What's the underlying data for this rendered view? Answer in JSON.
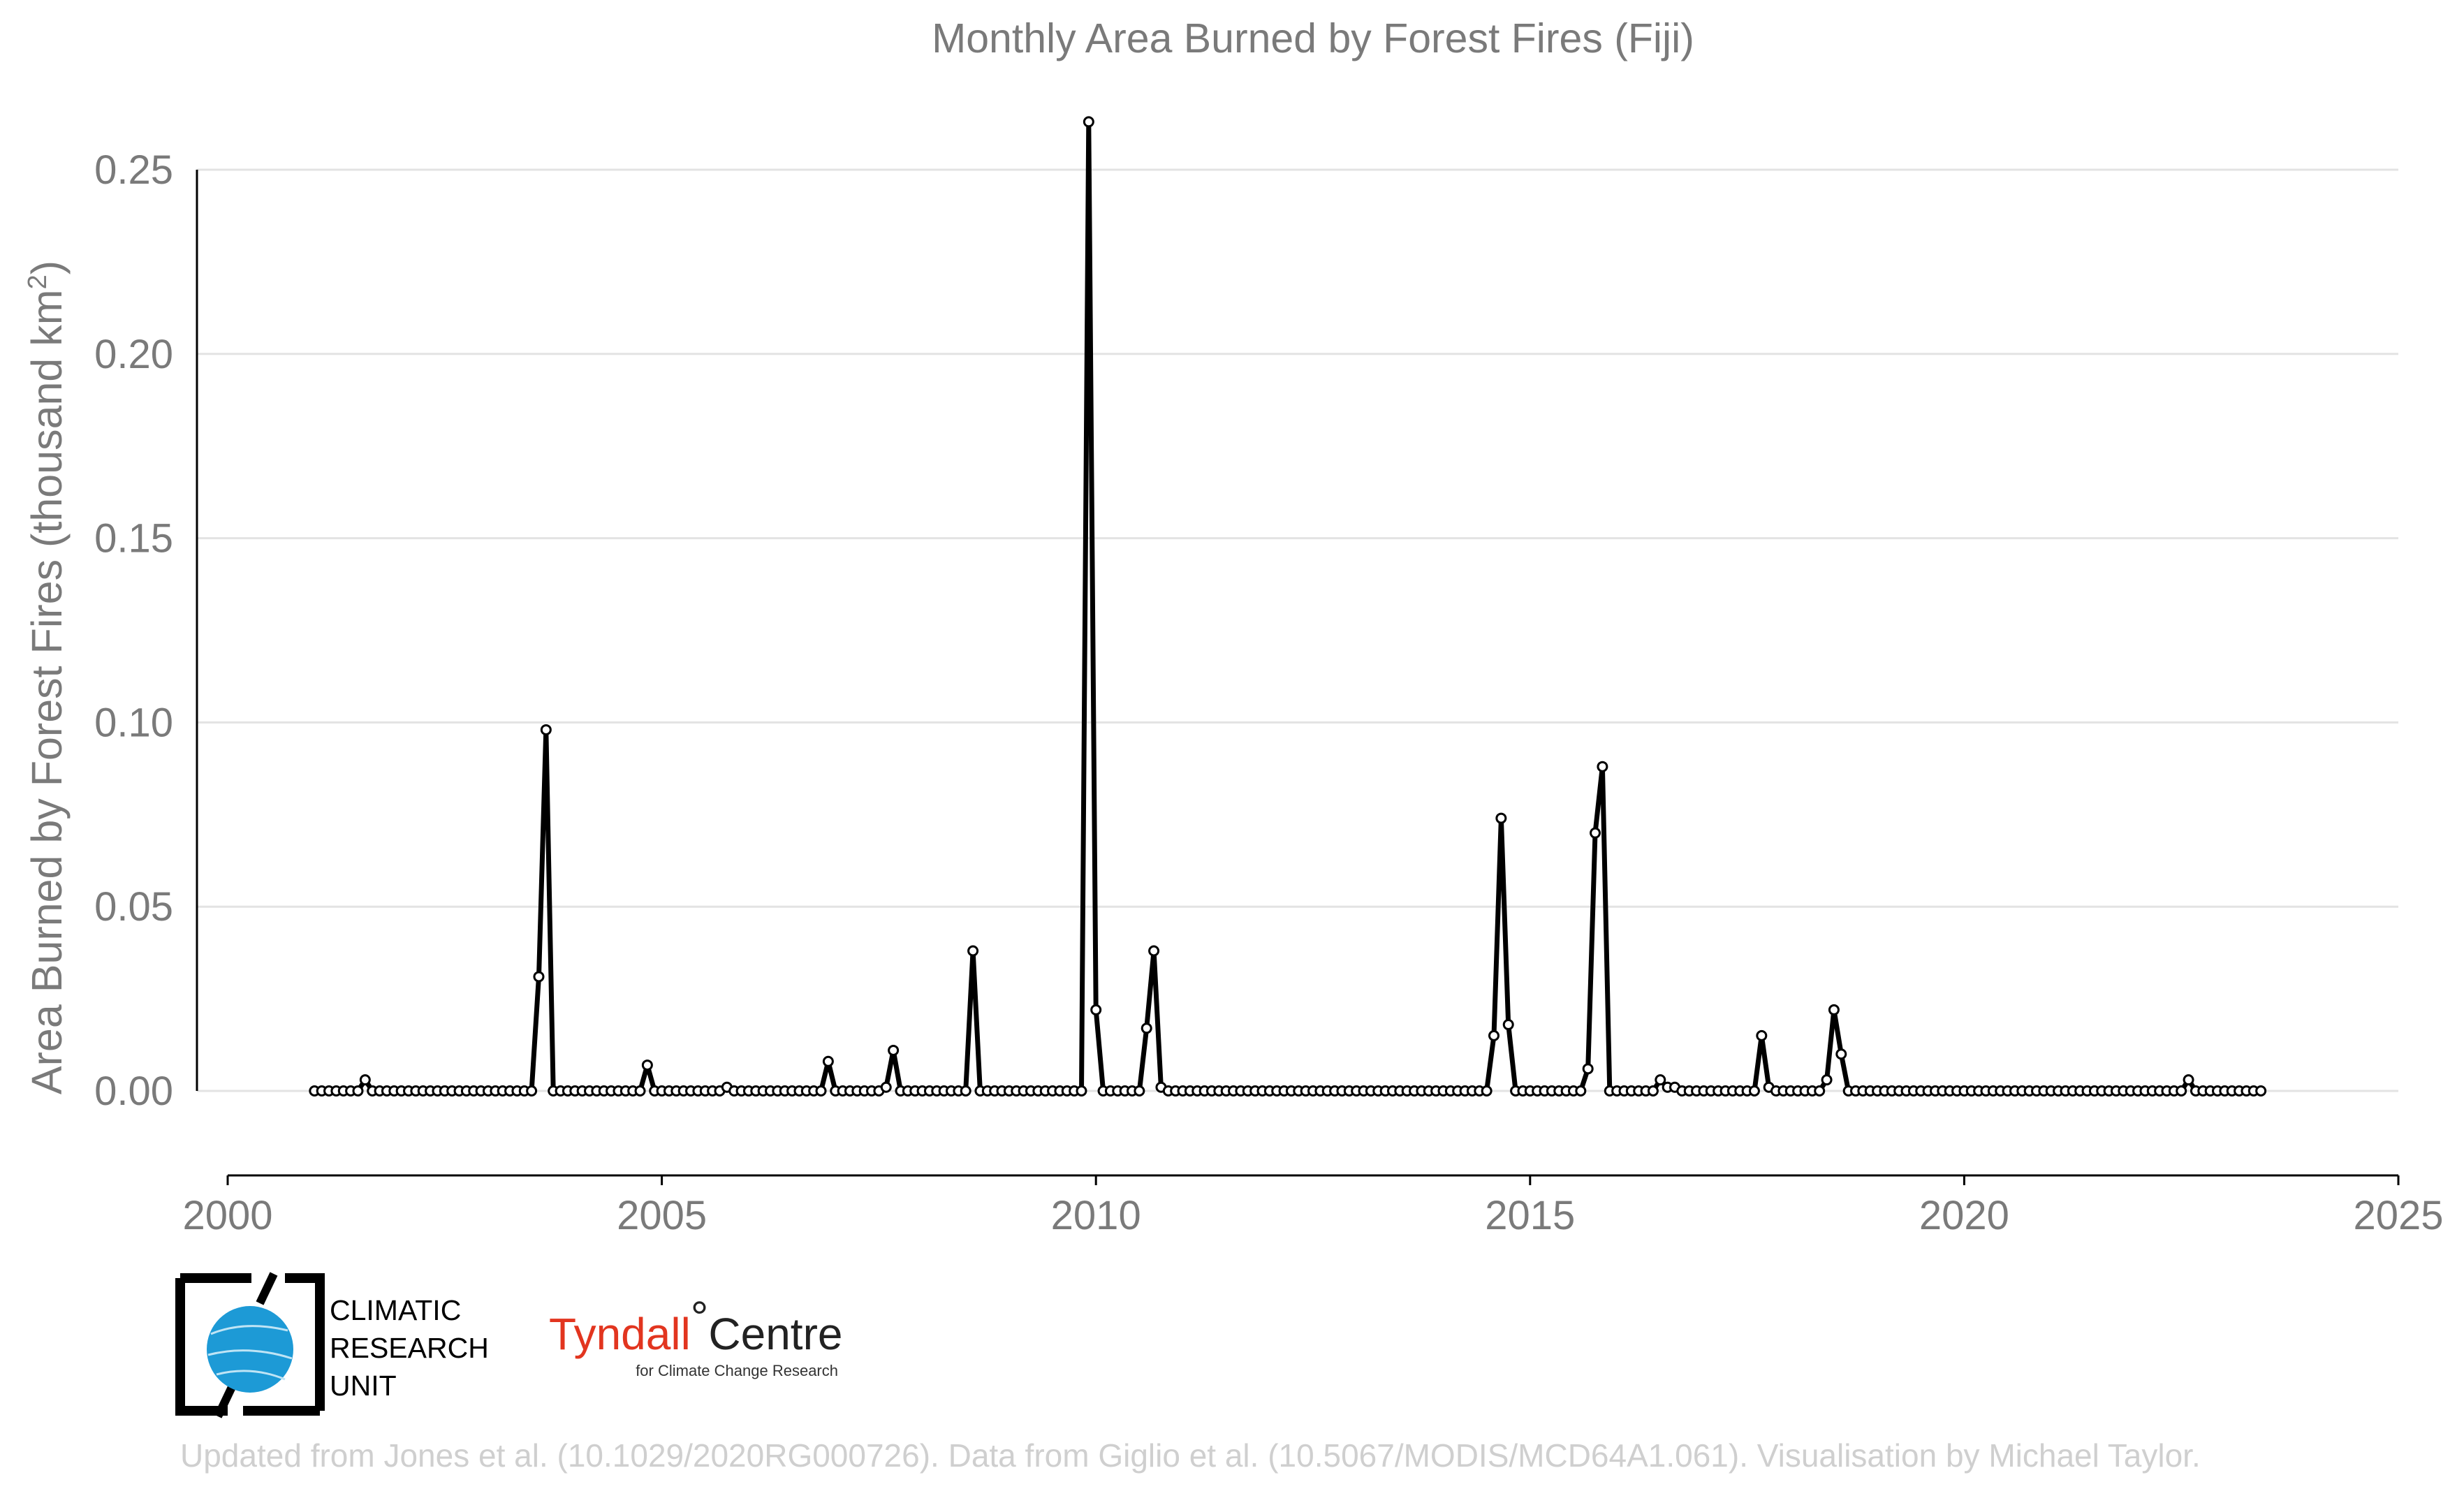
{
  "chart_data": {
    "type": "line",
    "title": "Monthly Area Burned by Forest Fires (Fiji)",
    "ylabel": "Area Burned by Forest Fires (thousand km",
    "ylabel_superscript": "2",
    "ylabel_suffix": ")",
    "xlim": [
      2000,
      2025
    ],
    "ylim": [
      -0.016,
      0.27
    ],
    "xticks": [
      2000,
      2005,
      2010,
      2015,
      2020,
      2025
    ],
    "xtick_labels": [
      "2000",
      "2005",
      "2010",
      "2015",
      "2020",
      "2025"
    ],
    "yticks": [
      0.0,
      0.05,
      0.1,
      0.15,
      0.2,
      0.25
    ],
    "ytick_labels": [
      "0.00",
      "0.05",
      "0.10",
      "0.15",
      "0.20",
      "0.25"
    ],
    "grid": true,
    "series": [
      {
        "start_year": 2001,
        "start_month": 1,
        "line_color": "#000000",
        "marker_fill": "#ffffff",
        "values": [
          0,
          0,
          0,
          0,
          0,
          0,
          0,
          0.003,
          0,
          0,
          0,
          0,
          0,
          0,
          0,
          0,
          0,
          0,
          0,
          0,
          0,
          0,
          0,
          0,
          0,
          0,
          0,
          0,
          0,
          0,
          0,
          0.031,
          0.098,
          0,
          0,
          0,
          0,
          0,
          0,
          0,
          0,
          0,
          0,
          0,
          0,
          0,
          0.007,
          0,
          0,
          0,
          0,
          0,
          0,
          0,
          0,
          0,
          0,
          0.001,
          0,
          0,
          0,
          0,
          0,
          0,
          0,
          0,
          0,
          0,
          0,
          0,
          0,
          0.008,
          0,
          0,
          0,
          0,
          0,
          0,
          0,
          0.001,
          0.011,
          0,
          0,
          0,
          0,
          0,
          0,
          0,
          0,
          0,
          0,
          0.038,
          0,
          0,
          0,
          0,
          0,
          0,
          0,
          0,
          0,
          0,
          0,
          0,
          0,
          0,
          0,
          0.263,
          0.022,
          0,
          0,
          0,
          0,
          0,
          0,
          0.017,
          0.038,
          0.001,
          0,
          0,
          0,
          0,
          0,
          0,
          0,
          0,
          0,
          0,
          0,
          0,
          0,
          0,
          0,
          0,
          0,
          0,
          0,
          0,
          0,
          0,
          0,
          0,
          0,
          0,
          0,
          0,
          0,
          0,
          0,
          0,
          0,
          0,
          0,
          0,
          0,
          0,
          0,
          0,
          0,
          0,
          0,
          0,
          0,
          0.015,
          0.074,
          0.018,
          0,
          0,
          0,
          0,
          0,
          0,
          0,
          0,
          0,
          0,
          0.006,
          0.07,
          0.088,
          0,
          0,
          0,
          0,
          0,
          0,
          0,
          0.003,
          0.001,
          0.001,
          0,
          0,
          0,
          0,
          0,
          0,
          0,
          0,
          0,
          0,
          0,
          0.015,
          0.001,
          0,
          0,
          0,
          0,
          0,
          0,
          0,
          0.003,
          0.022,
          0.01,
          0,
          0,
          0,
          0,
          0,
          0,
          0,
          0,
          0,
          0,
          0,
          0,
          0,
          0,
          0,
          0,
          0,
          0,
          0,
          0,
          0,
          0,
          0,
          0,
          0,
          0,
          0,
          0,
          0,
          0,
          0,
          0,
          0,
          0,
          0,
          0,
          0,
          0,
          0,
          0,
          0,
          0,
          0,
          0,
          0,
          0,
          0,
          0.003,
          0,
          0,
          0,
          0,
          0,
          0,
          0,
          0,
          0,
          0
        ]
      }
    ]
  },
  "logos": {
    "cru_line1": "CLIMATIC",
    "cru_line2": "RESEARCH",
    "cru_line3": "UNIT",
    "tyndall_part1": "Tyndall",
    "tyndall_degree": "°",
    "tyndall_part2": "Centre",
    "tyndall_sub": "for Climate Change Research"
  },
  "credit": "Updated from Jones et al. (10.1029/2020RG000726). Data from Giglio et al. (10.5067/MODIS/MCD64A1.061). Visualisation by Michael Taylor."
}
